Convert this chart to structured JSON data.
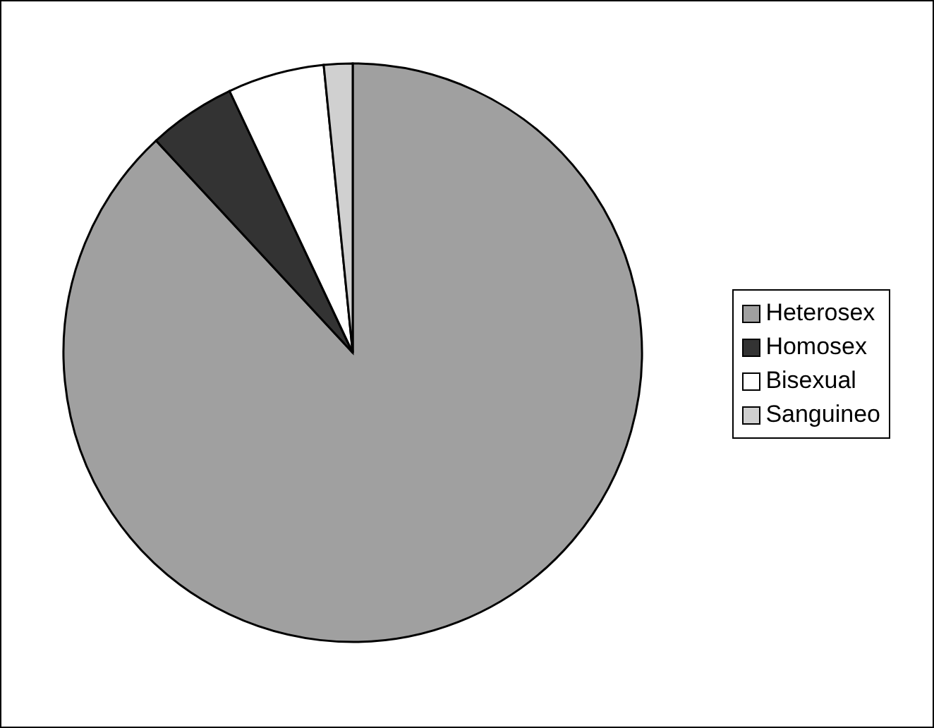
{
  "chart_data": {
    "type": "pie",
    "categories": [
      "Heterosex",
      "Homosex",
      "Bisexual",
      "Sanguineo"
    ],
    "values": [
      88.1,
      4.9,
      5.4,
      1.6
    ],
    "colors": [
      "#a0a0a0",
      "#333333",
      "#ffffff",
      "#d0d0d0"
    ],
    "legend": "right"
  }
}
